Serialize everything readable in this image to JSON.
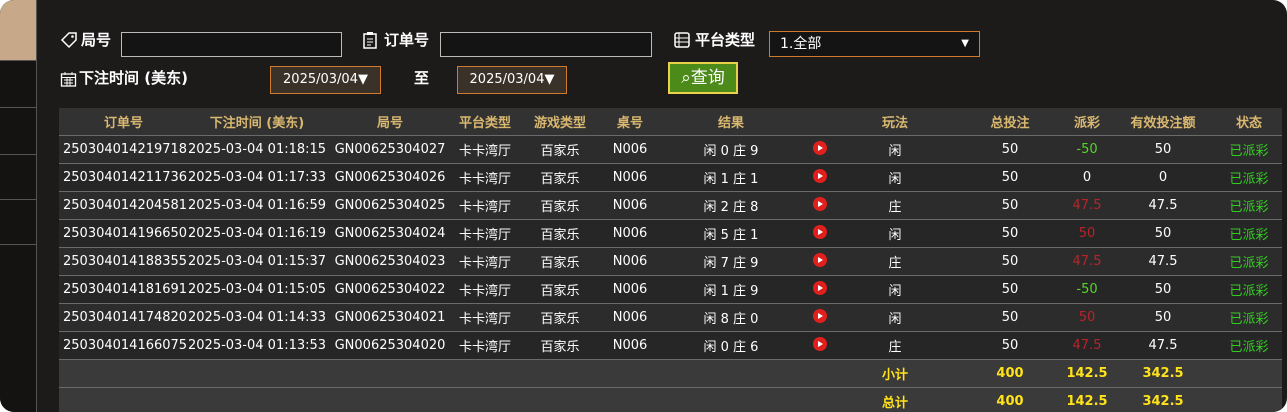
{
  "filters": {
    "round_label": "局号",
    "order_label": "订单号",
    "platform_label": "平台类型",
    "platform_value": "1.全部",
    "time_label": "下注时间 (美东)",
    "date_from": "2025/03/04▼",
    "to_label": "至",
    "date_to": "2025/03/04▼",
    "search_button": "查询"
  },
  "table": {
    "headers": [
      "订单号",
      "下注时间 (美东)",
      "局号",
      "平台类型",
      "游戏类型",
      "桌号",
      "结果",
      "玩法",
      "总投注",
      "派彩",
      "有效投注额",
      "状态"
    ],
    "rows": [
      [
        "250304014219718",
        "2025-03-04 01:18:15",
        "GN00625304027",
        "卡卡湾厅",
        "百家乐",
        "N006",
        "闲 0 庄 9",
        "闲",
        "50",
        "-50",
        "50",
        "已派彩"
      ],
      [
        "250304014211736",
        "2025-03-04 01:17:33",
        "GN00625304026",
        "卡卡湾厅",
        "百家乐",
        "N006",
        "闲 1 庄 1",
        "闲",
        "50",
        "0",
        "0",
        "已派彩"
      ],
      [
        "250304014204581",
        "2025-03-04 01:16:59",
        "GN00625304025",
        "卡卡湾厅",
        "百家乐",
        "N006",
        "闲 2 庄 8",
        "庄",
        "50",
        "47.5",
        "47.5",
        "已派彩"
      ],
      [
        "250304014196650",
        "2025-03-04 01:16:19",
        "GN00625304024",
        "卡卡湾厅",
        "百家乐",
        "N006",
        "闲 5 庄 1",
        "闲",
        "50",
        "50",
        "50",
        "已派彩"
      ],
      [
        "250304014188355",
        "2025-03-04 01:15:37",
        "GN00625304023",
        "卡卡湾厅",
        "百家乐",
        "N006",
        "闲 7 庄 9",
        "庄",
        "50",
        "47.5",
        "47.5",
        "已派彩"
      ],
      [
        "250304014181691",
        "2025-03-04 01:15:05",
        "GN00625304022",
        "卡卡湾厅",
        "百家乐",
        "N006",
        "闲 1 庄 9",
        "闲",
        "50",
        "-50",
        "50",
        "已派彩"
      ],
      [
        "250304014174820",
        "2025-03-04 01:14:33",
        "GN00625304021",
        "卡卡湾厅",
        "百家乐",
        "N006",
        "闲 8 庄 0",
        "闲",
        "50",
        "50",
        "50",
        "已派彩"
      ],
      [
        "250304014166075",
        "2025-03-04 01:13:53",
        "GN00625304020",
        "卡卡湾厅",
        "百家乐",
        "N006",
        "闲 0 庄 6",
        "庄",
        "50",
        "47.5",
        "47.5",
        "已派彩"
      ]
    ],
    "summary": [
      [
        "小计",
        "400",
        "142.5",
        "342.5"
      ],
      [
        "总计",
        "400",
        "142.5",
        "342.5"
      ]
    ]
  }
}
